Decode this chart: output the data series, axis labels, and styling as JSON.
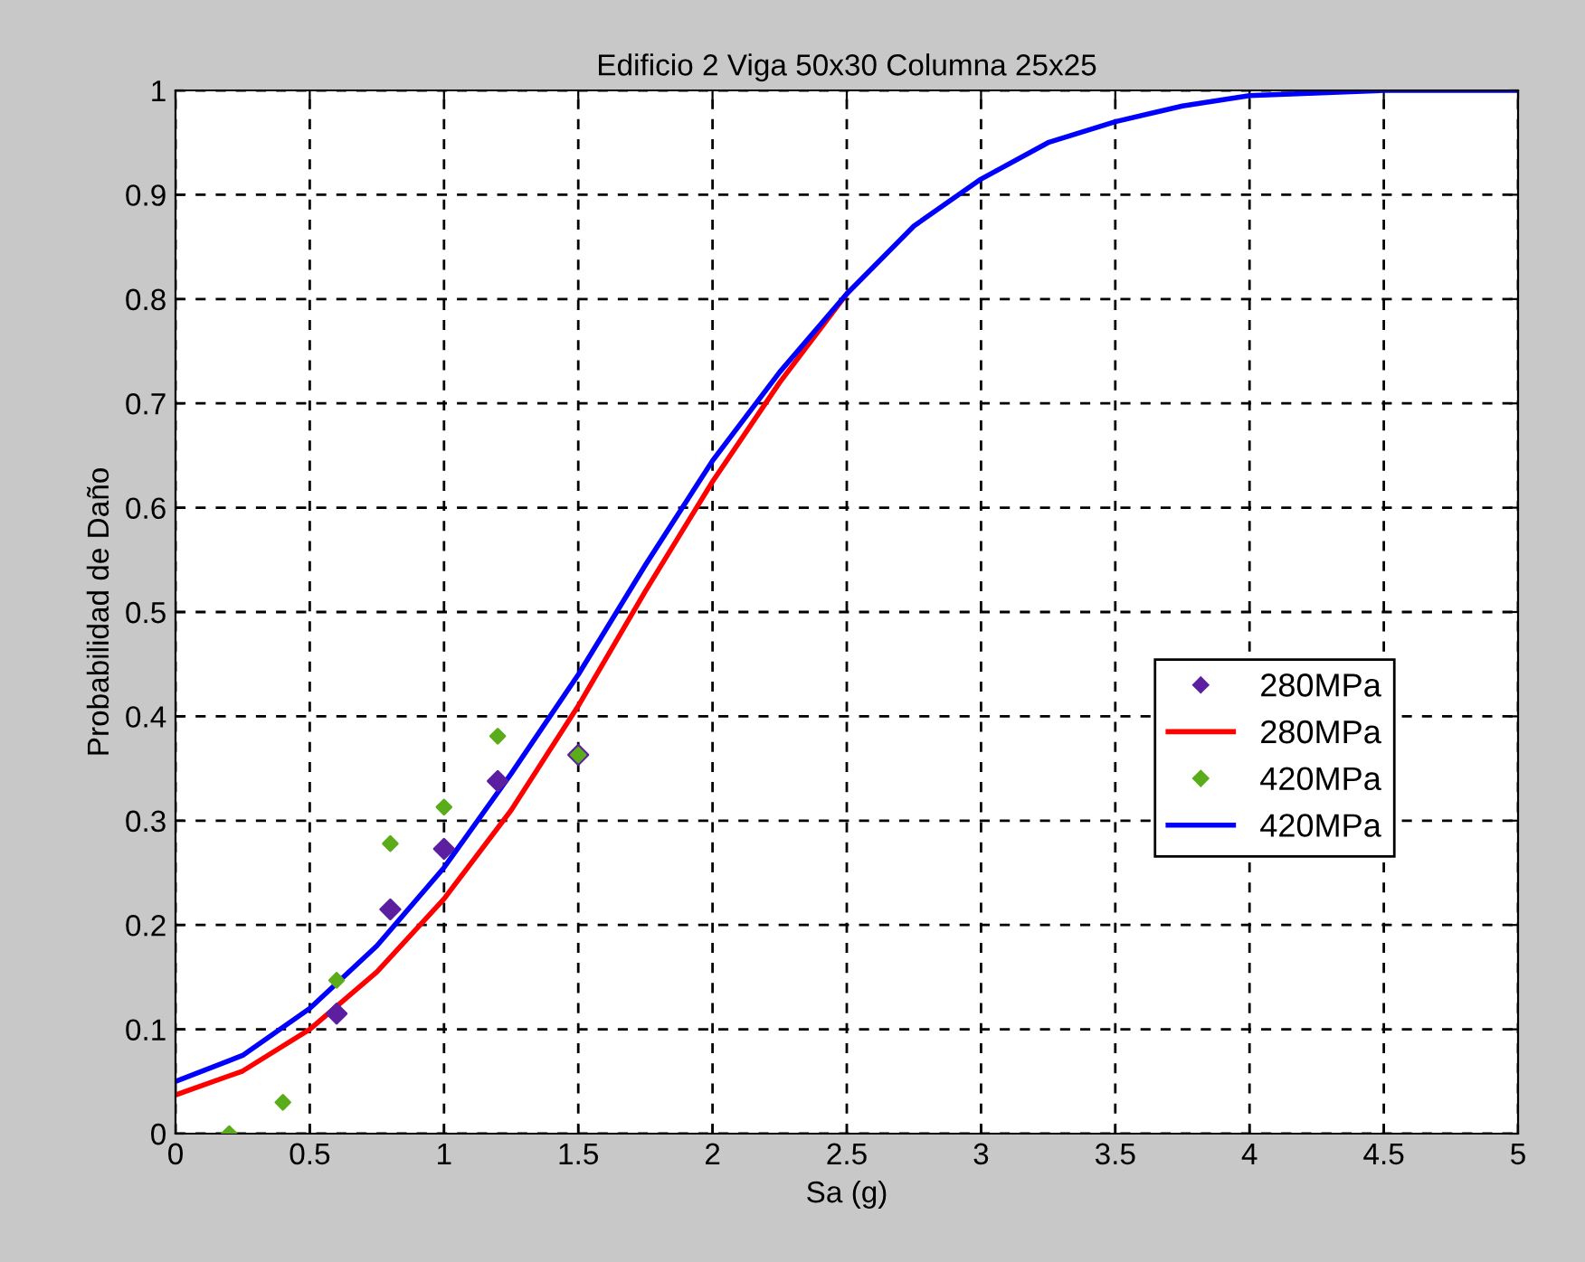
{
  "chart_data": {
    "type": "line",
    "title": "Edificio 2 Viga 50x30 Columna 25x25",
    "xlabel": "Sa (g)",
    "ylabel": "Probabilidad de Daño",
    "xlim": [
      0,
      5
    ],
    "xticks": [
      0,
      0.5,
      1,
      1.5,
      2,
      2.5,
      3,
      3.5,
      4,
      4.5,
      5
    ],
    "ylim": [
      0,
      1
    ],
    "yticks": [
      0,
      0.1,
      0.2,
      0.3,
      0.4,
      0.5,
      0.6,
      0.7,
      0.8,
      0.9,
      1
    ],
    "grid": true,
    "legend": "right",
    "series": [
      {
        "name": "280MPa",
        "type": "scatter",
        "marker": "diamond",
        "color": "#5b1fa0",
        "x": [
          0.6,
          0.8,
          1.0,
          1.2,
          1.5
        ],
        "values": [
          0.115,
          0.215,
          0.273,
          0.338,
          0.363
        ]
      },
      {
        "name": "280MPa",
        "color": "#ff0000",
        "x": [
          0,
          0.25,
          0.5,
          0.75,
          1.0,
          1.25,
          1.5,
          1.75,
          2.0,
          2.25,
          2.5
        ],
        "values": [
          0.037,
          0.06,
          0.1,
          0.155,
          0.225,
          0.31,
          0.41,
          0.52,
          0.625,
          0.72,
          0.805
        ]
      },
      {
        "name": "420MPa",
        "type": "scatter",
        "marker": "diamond",
        "color": "#5aac1a",
        "x": [
          0.2,
          0.4,
          0.6,
          0.8,
          1.0,
          1.2,
          1.5
        ],
        "values": [
          0.0,
          0.03,
          0.147,
          0.278,
          0.313,
          0.381,
          0.363
        ]
      },
      {
        "name": "420MPa",
        "color": "#0000ff",
        "x": [
          0,
          0.25,
          0.5,
          0.75,
          1.0,
          1.25,
          1.5,
          1.75,
          2.0,
          2.25,
          2.5,
          2.75,
          3.0,
          3.25,
          3.5,
          3.75,
          4.0,
          4.5,
          5.0
        ],
        "values": [
          0.05,
          0.075,
          0.12,
          0.18,
          0.255,
          0.345,
          0.44,
          0.545,
          0.645,
          0.73,
          0.805,
          0.87,
          0.915,
          0.95,
          0.97,
          0.985,
          0.995,
          1.0,
          1.0
        ]
      }
    ]
  }
}
